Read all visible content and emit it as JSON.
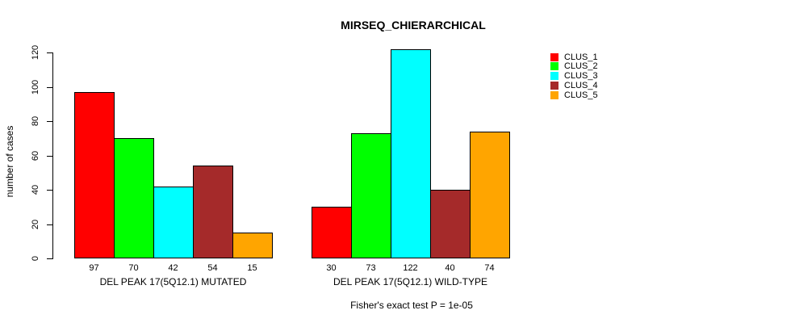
{
  "chart_data": {
    "type": "bar",
    "title": "MIRSEQ_CHIERARCHICAL",
    "ylabel": "number of cases",
    "xlabel": "",
    "ylim": [
      0,
      120
    ],
    "yticks": [
      0,
      20,
      40,
      60,
      80,
      100,
      120
    ],
    "grid": false,
    "legend_position": "outside-top-right",
    "categories": [
      "DEL PEAK 17(5Q12.1) MUTATED",
      "DEL PEAK 17(5Q12.1) WILD-TYPE"
    ],
    "series": [
      {
        "name": "CLUS_1",
        "color": "#ff0000",
        "values": [
          97,
          30
        ]
      },
      {
        "name": "CLUS_2",
        "color": "#00ff00",
        "values": [
          70,
          73
        ]
      },
      {
        "name": "CLUS_3",
        "color": "#00ffff",
        "values": [
          42,
          122
        ]
      },
      {
        "name": "CLUS_4",
        "color": "#a52a2a",
        "values": [
          54,
          40
        ]
      },
      {
        "name": "CLUS_5",
        "color": "#ffa500",
        "values": [
          15,
          74
        ]
      }
    ],
    "show_bar_values": true,
    "annotation": "Fisher's exact test P = 1e-05"
  }
}
